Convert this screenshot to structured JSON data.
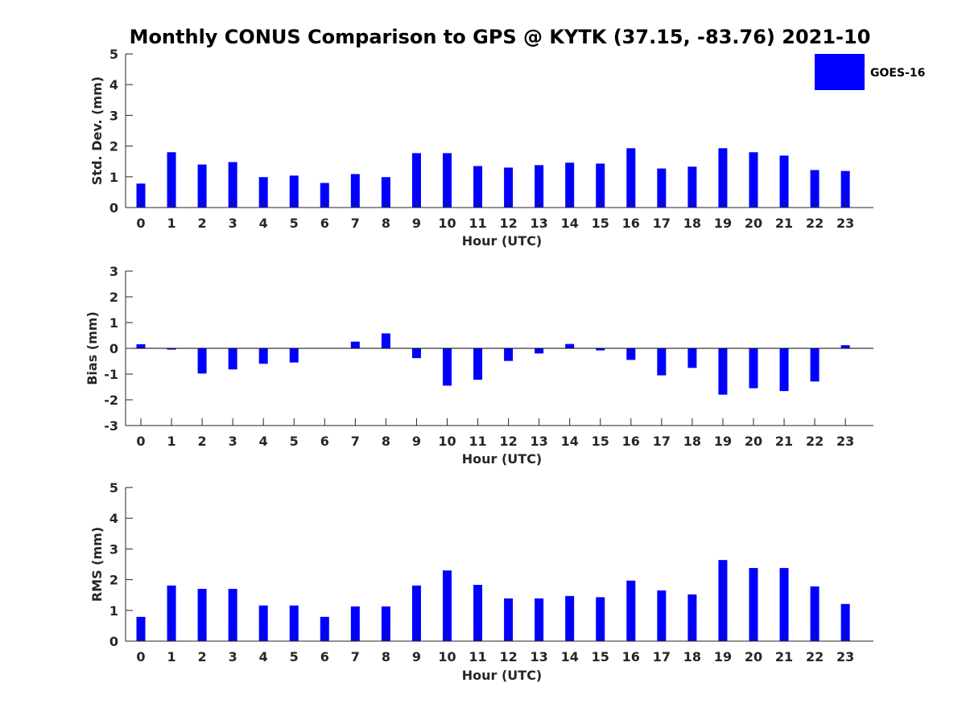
{
  "title": "Monthly CONUS Comparison to GPS @ KYTK (37.15, -83.76) 2021-10",
  "legend": {
    "label": "GOES-16",
    "color": "#0000ff"
  },
  "chart_data": [
    {
      "type": "bar",
      "xlabel": "Hour (UTC)",
      "ylabel": "Std. Dev. (mm)",
      "ylim": [
        0,
        5
      ],
      "yticks": [
        0,
        1,
        2,
        3,
        4,
        5
      ],
      "categories": [
        "0",
        "1",
        "2",
        "3",
        "4",
        "5",
        "6",
        "7",
        "8",
        "9",
        "10",
        "11",
        "12",
        "13",
        "14",
        "15",
        "16",
        "17",
        "18",
        "19",
        "20",
        "21",
        "22",
        "23"
      ],
      "series": [
        {
          "name": "GOES-16",
          "color": "#0000ff",
          "values": [
            0.78,
            1.8,
            1.4,
            1.48,
            0.99,
            1.04,
            0.8,
            1.09,
            0.99,
            1.77,
            1.77,
            1.35,
            1.3,
            1.38,
            1.46,
            1.43,
            1.93,
            1.27,
            1.33,
            1.93,
            1.8,
            1.69,
            1.22,
            1.19
          ]
        }
      ]
    },
    {
      "type": "bar",
      "xlabel": "Hour (UTC)",
      "ylabel": "Bias (mm)",
      "ylim": [
        -3,
        3
      ],
      "yticks": [
        -3,
        -2,
        -1,
        0,
        1,
        2,
        3
      ],
      "categories": [
        "0",
        "1",
        "2",
        "3",
        "4",
        "5",
        "6",
        "7",
        "8",
        "9",
        "10",
        "11",
        "12",
        "13",
        "14",
        "15",
        "16",
        "17",
        "18",
        "19",
        "20",
        "21",
        "22",
        "23"
      ],
      "series": [
        {
          "name": "GOES-16",
          "color": "#0000ff",
          "values": [
            0.16,
            -0.05,
            -0.98,
            -0.82,
            -0.6,
            -0.55,
            0.0,
            0.26,
            0.58,
            -0.38,
            -1.45,
            -1.22,
            -0.49,
            -0.2,
            0.17,
            -0.08,
            -0.45,
            -1.05,
            -0.76,
            -1.8,
            -1.55,
            -1.66,
            -1.29,
            0.12
          ]
        }
      ]
    },
    {
      "type": "bar",
      "xlabel": "Hour (UTC)",
      "ylabel": "RMS (mm)",
      "ylim": [
        0,
        5
      ],
      "yticks": [
        0,
        1,
        2,
        3,
        4,
        5
      ],
      "categories": [
        "0",
        "1",
        "2",
        "3",
        "4",
        "5",
        "6",
        "7",
        "8",
        "9",
        "10",
        "11",
        "12",
        "13",
        "14",
        "15",
        "16",
        "17",
        "18",
        "19",
        "20",
        "21",
        "22",
        "23"
      ],
      "series": [
        {
          "name": "GOES-16",
          "color": "#0000ff",
          "values": [
            0.79,
            1.81,
            1.7,
            1.7,
            1.16,
            1.16,
            0.79,
            1.13,
            1.13,
            1.81,
            2.3,
            1.83,
            1.39,
            1.39,
            1.47,
            1.43,
            1.97,
            1.65,
            1.52,
            2.64,
            2.38,
            2.38,
            1.78,
            1.21
          ]
        }
      ]
    }
  ]
}
